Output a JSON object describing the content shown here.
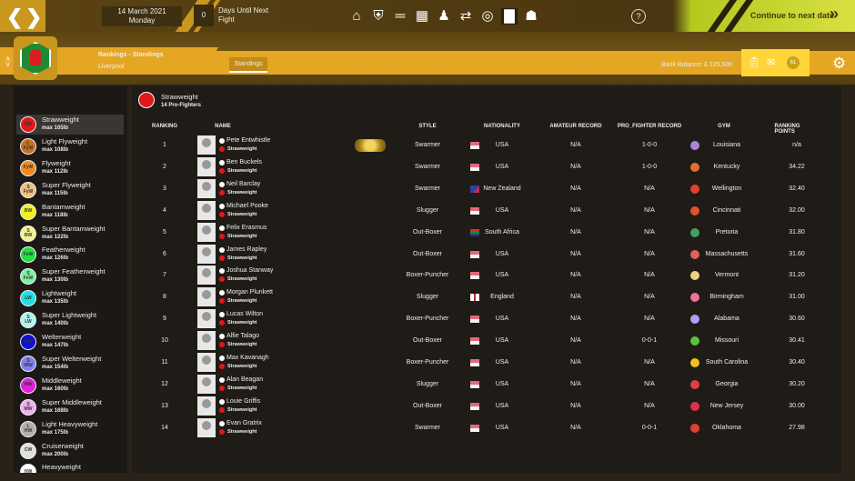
{
  "topbar": {
    "date": "14 March 2021",
    "weekday": "Monday",
    "days_count": "0",
    "days_label": "Days Until Next Fight",
    "help": "?",
    "continue_label": "Continue to next date",
    "nav_icons": [
      "home-icon",
      "shield-icon",
      "dumbbell-icon",
      "calendar-icon",
      "fighters-icon",
      "transfer-icon",
      "target-icon",
      "rankings-icon",
      "trophy-icon"
    ],
    "active_icon": "rankings-icon"
  },
  "header": {
    "title": "Rankings - Standings",
    "subtitle": "Liverpool",
    "tab": "Standings",
    "bank_balance": "Bank Balance: £ 125,500",
    "badge": "61"
  },
  "sidebar": {
    "items": [
      {
        "name": "Strawweight",
        "max": "max 105lb",
        "abbr": "SW",
        "color": "#e01818"
      },
      {
        "name": "Light Flyweight",
        "max": "max 108lb",
        "abbr": "L FyW",
        "color": "#c87020"
      },
      {
        "name": "Flyweight",
        "max": "max 112lb",
        "abbr": "FyW",
        "color": "#f08a20"
      },
      {
        "name": "Super Flyweight",
        "max": "max 115lb",
        "abbr": "S FyW",
        "color": "#f0c080"
      },
      {
        "name": "Bantamweight",
        "max": "max 118lb",
        "abbr": "BW",
        "color": "#f0f020"
      },
      {
        "name": "Super Bantamweight",
        "max": "max 122lb",
        "abbr": "S BW",
        "color": "#f4f090"
      },
      {
        "name": "Featherweight",
        "max": "max 126lb",
        "abbr": "FeW",
        "color": "#20e040"
      },
      {
        "name": "Super Featherweight",
        "max": "max 130lb",
        "abbr": "S FeW",
        "color": "#80f0a0"
      },
      {
        "name": "Lightweight",
        "max": "max 135lb",
        "abbr": "LW",
        "color": "#20e0e0"
      },
      {
        "name": "Super Lightweight",
        "max": "max 140lb",
        "abbr": "S LW",
        "color": "#b0f4f0"
      },
      {
        "name": "Welterweight",
        "max": "max 147lb",
        "abbr": "WW",
        "color": "#1010d0"
      },
      {
        "name": "Super Welterweight",
        "max": "max 154lb",
        "abbr": "S WW",
        "color": "#8080f0"
      },
      {
        "name": "Middleweight",
        "max": "max 160lb",
        "abbr": "MW",
        "color": "#e020e0"
      },
      {
        "name": "Super Middleweight",
        "max": "max 168lb",
        "abbr": "S MW",
        "color": "#f0b0f0"
      },
      {
        "name": "Light Heavyweight",
        "max": "max 175lb",
        "abbr": "L HW",
        "color": "#b0b0b0"
      },
      {
        "name": "Cruiserweight",
        "max": "max 200lb",
        "abbr": "CW",
        "color": "#e0e0e0"
      },
      {
        "name": "Heavyweight",
        "max": "",
        "abbr": "HW",
        "color": "#ffffff"
      }
    ]
  },
  "panel": {
    "title": "Strawweight",
    "subtitle": "14 Pro-Fighters",
    "columns": [
      "RANKING",
      "NAME",
      "STYLE",
      "NATIONALITY",
      "AMATEUR RECORD",
      "PRO_FIGHTER RECORD",
      "GYM",
      "RANKING POINTS"
    ],
    "rows": [
      {
        "rank": "1",
        "name": "Pete Entwhistle",
        "weight": "Strawweight",
        "style": "Swarmer",
        "nat": "USA",
        "flag": "usa",
        "amateur": "N/A",
        "pro": "1-0-0",
        "gym": "Louisiana",
        "gym_color": "#b080e0",
        "points": "n/a",
        "belt": true
      },
      {
        "rank": "2",
        "name": "Ben Buckels",
        "weight": "Strawweight",
        "style": "Swarmer",
        "nat": "USA",
        "flag": "usa",
        "amateur": "N/A",
        "pro": "1-0-0",
        "gym": "Kentucky",
        "gym_color": "#e07030",
        "points": "34.22"
      },
      {
        "rank": "3",
        "name": "Neil Barclay",
        "weight": "Strawweight",
        "style": "Swarmer",
        "nat": "New Zealand",
        "flag": "nz",
        "amateur": "N/A",
        "pro": "N/A",
        "gym": "Wellington",
        "gym_color": "#e04030",
        "points": "32.40"
      },
      {
        "rank": "4",
        "name": "Michael Pooke",
        "weight": "Strawweight",
        "style": "Slugger",
        "nat": "USA",
        "flag": "usa",
        "amateur": "N/A",
        "pro": "N/A",
        "gym": "Cincinnati",
        "gym_color": "#e05030",
        "points": "32.00"
      },
      {
        "rank": "5",
        "name": "Felix Erasmus",
        "weight": "Strawweight",
        "style": "Out-Boxer",
        "nat": "South Africa",
        "flag": "za",
        "amateur": "N/A",
        "pro": "N/A",
        "gym": "Pretoria",
        "gym_color": "#40a060",
        "points": "31.80"
      },
      {
        "rank": "6",
        "name": "James Rapley",
        "weight": "Strawweight",
        "style": "Out-Boxer",
        "nat": "USA",
        "flag": "usa",
        "amateur": "N/A",
        "pro": "N/A",
        "gym": "Massachusetts",
        "gym_color": "#e06060",
        "points": "31.60"
      },
      {
        "rank": "7",
        "name": "Joshua Stanway",
        "weight": "Strawweight",
        "style": "Boxer-Puncher",
        "nat": "USA",
        "flag": "usa",
        "amateur": "N/A",
        "pro": "N/A",
        "gym": "Vermont",
        "gym_color": "#f0d080",
        "points": "31.20"
      },
      {
        "rank": "8",
        "name": "Morgan Plunkett",
        "weight": "Strawweight",
        "style": "Slugger",
        "nat": "England",
        "flag": "eng",
        "amateur": "N/A",
        "pro": "N/A",
        "gym": "Birmingham",
        "gym_color": "#f070a0",
        "points": "31.00"
      },
      {
        "rank": "9",
        "name": "Lucas Wilton",
        "weight": "Strawweight",
        "style": "Boxer-Puncher",
        "nat": "USA",
        "flag": "usa",
        "amateur": "N/A",
        "pro": "N/A",
        "gym": "Alabama",
        "gym_color": "#b0a0f0",
        "points": "30.60"
      },
      {
        "rank": "10",
        "name": "Alfie Talago",
        "weight": "Strawweight",
        "style": "Out-Boxer",
        "nat": "USA",
        "flag": "usa",
        "amateur": "N/A",
        "pro": "0-0-1",
        "gym": "Missouri",
        "gym_color": "#60c040",
        "points": "30.41"
      },
      {
        "rank": "11",
        "name": "Max Kavanagh",
        "weight": "Strawweight",
        "style": "Boxer-Puncher",
        "nat": "USA",
        "flag": "usa",
        "amateur": "N/A",
        "pro": "N/A",
        "gym": "South Carolina",
        "gym_color": "#f0c020",
        "points": "30.40"
      },
      {
        "rank": "12",
        "name": "Alan Beagan",
        "weight": "Strawweight",
        "style": "Slugger",
        "nat": "USA",
        "flag": "usa",
        "amateur": "N/A",
        "pro": "N/A",
        "gym": "Georgia",
        "gym_color": "#e04040",
        "points": "30.20"
      },
      {
        "rank": "13",
        "name": "Louie Griffis",
        "weight": "Strawweight",
        "style": "Out-Boxer",
        "nat": "USA",
        "flag": "usa",
        "amateur": "N/A",
        "pro": "N/A",
        "gym": "New Jersey",
        "gym_color": "#e03050",
        "points": "30.00"
      },
      {
        "rank": "14",
        "name": "Evan Gratrix",
        "weight": "Strawweight",
        "style": "Swarmer",
        "nat": "USA",
        "flag": "usa",
        "amateur": "N/A",
        "pro": "0-0-1",
        "gym": "Oklahoma",
        "gym_color": "#e04030",
        "points": "27.98"
      }
    ]
  }
}
